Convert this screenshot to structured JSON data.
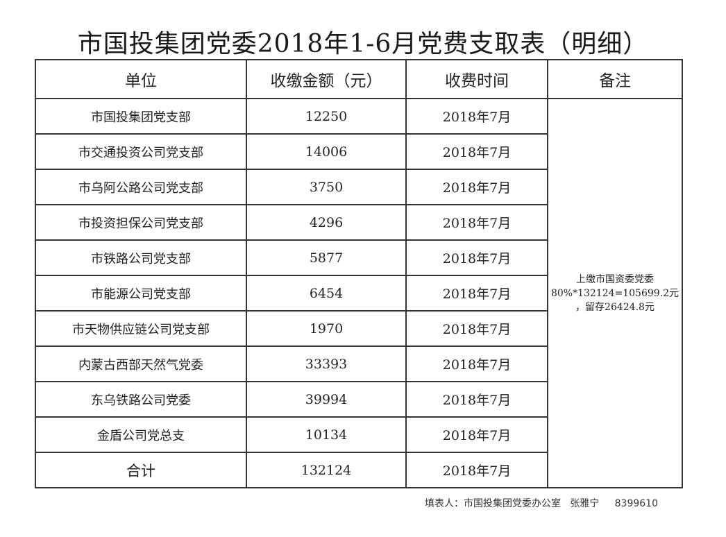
{
  "title": "市国投集团党委2018年1-6月党费支取表（明细）",
  "headers": [
    "单位",
    "收缴金额（元）",
    "收费时间",
    "备注"
  ],
  "rows": [
    {
      "unit": "市国投集团党支部",
      "amount": "12250",
      "time": "2018年7月"
    },
    {
      "unit": "市交通投资公司党支部",
      "amount": "14006",
      "time": "2018年7月"
    },
    {
      "unit": "市乌阿公路公司党支部",
      "amount": "3750",
      "time": "2018年7月"
    },
    {
      "unit": "市投资担保公司党支部",
      "amount": "4296",
      "time": "2018年7月"
    },
    {
      "unit": "市铁路公司党支部",
      "amount": "5877",
      "time": "2018年7月"
    },
    {
      "unit": "市能源公司党支部",
      "amount": "6454",
      "time": "2018年7月"
    },
    {
      "unit": "市天物供应链公司党支部",
      "amount": "1970",
      "time": "2018年7月"
    },
    {
      "unit": "内蒙古西部天然气党委",
      "amount": "33393",
      "time": "2018年7月"
    },
    {
      "unit": "东乌铁路公司党委",
      "amount": "39994",
      "time": "2018年7月"
    },
    {
      "unit": "金盾公司党总支",
      "amount": "10134",
      "time": "2018年7月"
    }
  ],
  "total": {
    "unit": "合计",
    "amount": "132124",
    "time": "2018年7月"
  },
  "note": [
    "上缴市国资委党委",
    "80%*132124=105699.2元",
    "，留存26424.8元"
  ],
  "footer": {
    "label": "填表人：市国投集团党委办公室",
    "name": "张雅宁",
    "phone": "8399610"
  }
}
